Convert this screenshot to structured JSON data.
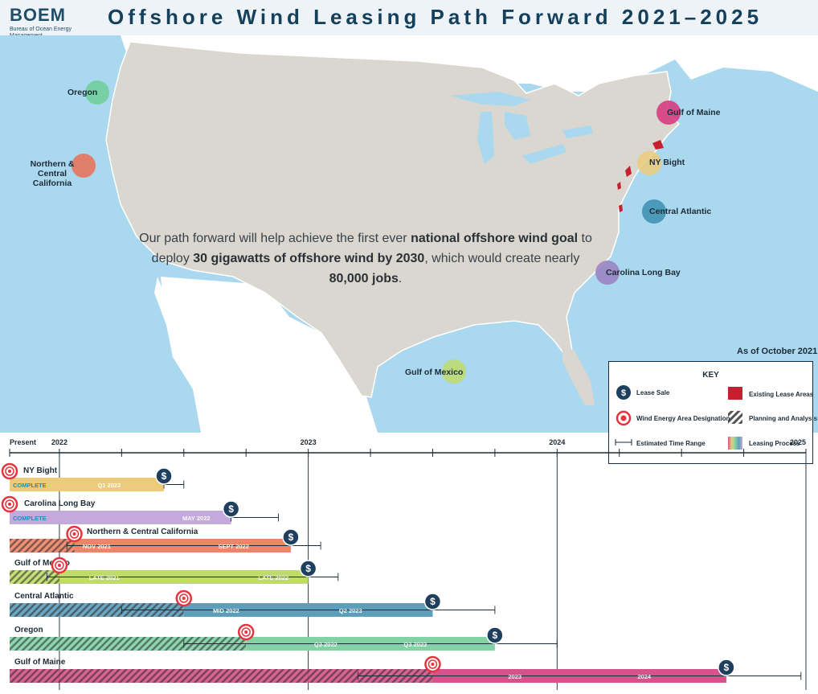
{
  "header": {
    "logo_text": "BOEM",
    "logo_subtitle": "Bureau of Ocean Energy Management",
    "title": "Offshore Wind Leasing Path Forward 2021–2025"
  },
  "map": {
    "goal_pre": "Our path forward will help achieve the first ever ",
    "goal_bold1": "national offshore wind goal",
    "goal_mid1": " to deploy ",
    "goal_bold2": "30 gigawatts of offshore wind by 2030",
    "goal_mid2": ", which would create nearly ",
    "goal_bold3": "80,000 jobs",
    "goal_end": ".",
    "as_of": "As of October 2021",
    "regions": [
      {
        "label": "Oregon",
        "color": "#6fcf97"
      },
      {
        "label": "Northern & Central California",
        "color": "#ec6f55"
      },
      {
        "label": "Gulf of Maine",
        "color": "#d6337a"
      },
      {
        "label": "NY Bight",
        "color": "#eccb7a"
      },
      {
        "label": "Central Atlantic",
        "color": "#3b8fb0"
      },
      {
        "label": "Carolina Long Bay",
        "color": "#9a7fc0"
      },
      {
        "label": "Gulf of Mexico",
        "color": "#bfdc6a"
      }
    ]
  },
  "key": {
    "title": "KEY",
    "lease_sale": "Lease Sale",
    "existing_lease_areas": "Existing Lease Areas",
    "wea_designation": "Wind Energy Area Designation",
    "planning_analysis": "Planning and Analysis",
    "estimated_time_range": "Estimated Time Range",
    "leasing_process": "Leasing Process",
    "lease_sale_icon": "$",
    "existing_color": "#c4202e"
  },
  "chart_data": {
    "type": "timeline",
    "axis": {
      "start_label": "Present",
      "year_labels": [
        "2022",
        "2023",
        "2024",
        "2025"
      ],
      "start": 2021.8,
      "end": 2025.0
    },
    "rows": [
      {
        "name": "NY Bight",
        "color": "#eccb7a",
        "hatch_end": null,
        "wea": 2021.8,
        "process_start": 2021.8,
        "process_end": 2022.42,
        "sale": 2022.42,
        "range_end": 2022.5,
        "status_label": "COMPLETE",
        "labels": [
          {
            "text": "Q1 2022",
            "at": 2022.2
          }
        ]
      },
      {
        "name": "Carolina Long Bay",
        "color": "#c4a9dd",
        "hatch_end": null,
        "wea": 2021.8,
        "process_start": 2021.8,
        "process_end": 2022.69,
        "sale": 2022.69,
        "range_end": 2022.88,
        "status_label": "COMPLETE",
        "labels": [
          {
            "text": "MAY 2022",
            "at": 2022.55
          }
        ]
      },
      {
        "name": "Northern & Central California",
        "color": "#ee8468",
        "hatch_end": 2022.06,
        "wea": 2022.06,
        "process_start": 2022.06,
        "process_end": 2022.93,
        "sale": 2022.93,
        "range_end": 2023.05,
        "range_start": 2022.03,
        "status_label": null,
        "labels": [
          {
            "text": "NOV 2021",
            "at": 2022.15
          },
          {
            "text": "SEPT 2022",
            "at": 2022.7
          }
        ]
      },
      {
        "name": "Gulf of Mexico",
        "color": "#bfdc6a",
        "hatch_end": 2022.0,
        "wea": 2022.0,
        "process_start": 2022.0,
        "process_end": 2023.0,
        "sale": 2023.0,
        "range_end": 2023.12,
        "range_start": 2021.95,
        "status_label": null,
        "labels": [
          {
            "text": "LATE 2021",
            "at": 2022.18
          },
          {
            "text": "LATE 2022",
            "at": 2022.86
          }
        ]
      },
      {
        "name": "Central Atlantic",
        "color": "#5d9fbb",
        "hatch_end": 2022.5,
        "wea": 2022.5,
        "process_start": 2022.5,
        "process_end": 2023.5,
        "sale": 2023.5,
        "range_end": 2023.75,
        "range_start": 2022.25,
        "status_label": null,
        "labels": [
          {
            "text": "MID 2022",
            "at": 2022.67
          },
          {
            "text": "Q2 2023",
            "at": 2023.17
          }
        ]
      },
      {
        "name": "Oregon",
        "color": "#82d2a6",
        "hatch_end": 2022.75,
        "wea": 2022.75,
        "process_start": 2022.75,
        "process_end": 2023.75,
        "sale": 2023.75,
        "range_end": 2024.0,
        "range_start": 2022.5,
        "status_label": null,
        "labels": [
          {
            "text": "Q3 2022",
            "at": 2023.07
          },
          {
            "text": "Q3 2023",
            "at": 2023.43
          }
        ]
      },
      {
        "name": "Gulf of Maine",
        "color": "#d6528a",
        "hatch_end": 2023.5,
        "wea": 2023.5,
        "process_start": 2023.5,
        "process_end": 2024.68,
        "sale": 2024.68,
        "range_end": 2024.98,
        "range_start": 2023.2,
        "status_label": null,
        "labels": [
          {
            "text": "2023",
            "at": 2023.83
          },
          {
            "text": "2024",
            "at": 2024.35
          }
        ]
      }
    ]
  }
}
